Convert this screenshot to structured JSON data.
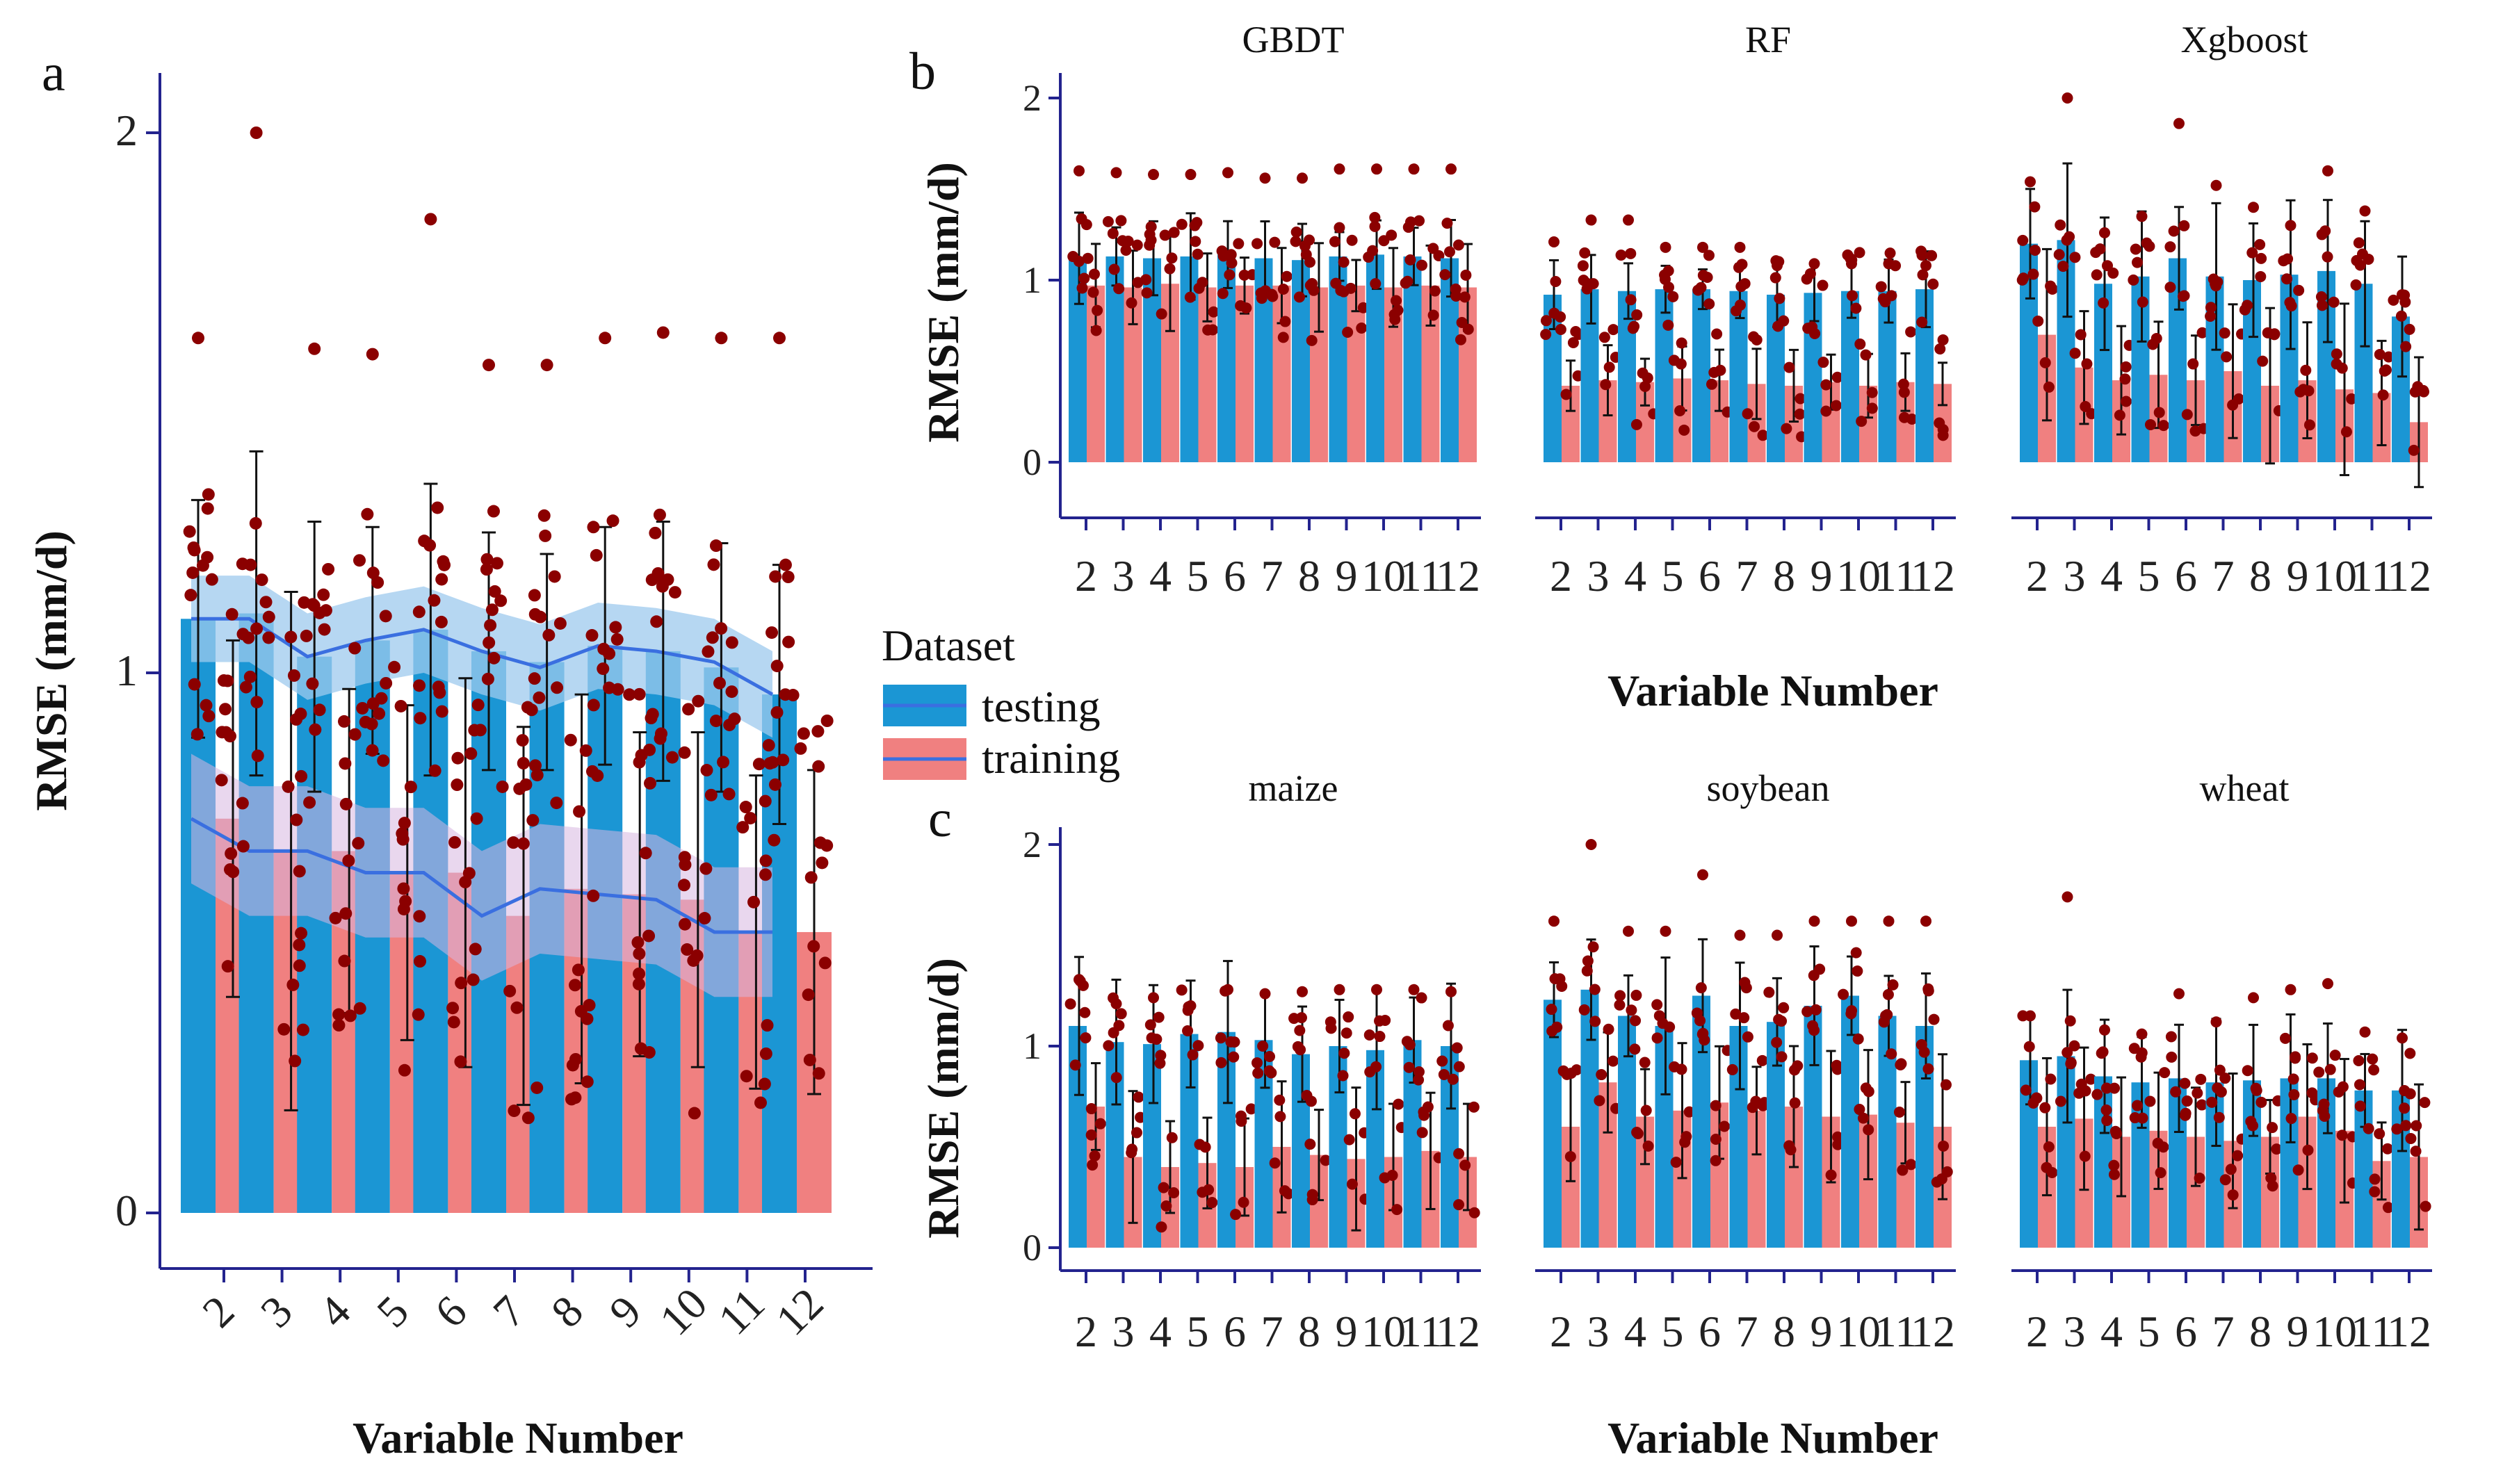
{
  "legend": {
    "title": "Dataset",
    "items": [
      "testing",
      "training"
    ]
  },
  "colors": {
    "testing": "#1B96D4",
    "training": "#F08080",
    "point": "#8B0000",
    "smooth": "#3A6FE0",
    "axis": "#23238E"
  },
  "chart_data": [
    {
      "panel": "a",
      "type": "bar",
      "xlabel": "Variable Number",
      "ylabel": "RMSE (mm/d)",
      "ylim": [
        -0.1,
        2.1
      ],
      "yticks": [
        "0",
        "1",
        "2"
      ],
      "categories": [
        "2",
        "3",
        "4",
        "5",
        "6",
        "7",
        "8",
        "9",
        "10",
        "11",
        "12"
      ],
      "series": [
        {
          "name": "testing",
          "values": [
            1.1,
            1.11,
            1.03,
            1.06,
            1.08,
            1.04,
            1.02,
            1.05,
            1.04,
            1.01,
            0.96
          ],
          "err": [
            0.22,
            0.3,
            0.25,
            0.21,
            0.27,
            0.22,
            0.2,
            0.22,
            0.24,
            0.23,
            0.24
          ],
          "points_hi": [
            1.62,
            2.0,
            1.6,
            1.59,
            1.84,
            1.57,
            1.57,
            1.62,
            1.63,
            1.62,
            1.62
          ]
        },
        {
          "name": "training",
          "values": [
            0.73,
            0.67,
            0.67,
            0.63,
            0.63,
            0.55,
            0.6,
            0.59,
            0.58,
            0.52,
            0.52
          ],
          "err": [
            0.33,
            0.48,
            0.3,
            0.31,
            0.36,
            0.35,
            0.36,
            0.3,
            0.31,
            0.29,
            0.3
          ]
        }
      ],
      "smooth": {
        "testing": [
          1.1,
          1.1,
          1.03,
          1.06,
          1.08,
          1.04,
          1.01,
          1.05,
          1.04,
          1.02,
          0.96
        ],
        "training": [
          0.73,
          0.67,
          0.67,
          0.63,
          0.63,
          0.55,
          0.6,
          0.59,
          0.58,
          0.52,
          0.52
        ]
      }
    },
    {
      "panel": "b",
      "type": "bar",
      "xlabel": "Variable Number",
      "ylabel": "RMSE (mm/d)",
      "ylim": [
        -0.3,
        2.1
      ],
      "yticks": [
        "0",
        "1",
        "2"
      ],
      "categories": [
        "2",
        "3",
        "4",
        "5",
        "6",
        "7",
        "8",
        "9",
        "10",
        "11",
        "12"
      ],
      "facets": [
        {
          "title": "GBDT",
          "testing": [
            1.12,
            1.13,
            1.12,
            1.13,
            1.14,
            1.12,
            1.11,
            1.13,
            1.14,
            1.13,
            1.12
          ],
          "training": [
            0.97,
            0.96,
            0.98,
            0.96,
            0.97,
            0.97,
            0.96,
            0.97,
            0.96,
            0.97,
            0.96
          ],
          "err": 0.22,
          "hi": [
            1.6,
            1.59,
            1.58,
            1.58,
            1.59,
            1.56,
            1.56,
            1.61,
            1.61,
            1.61,
            1.61
          ]
        },
        {
          "title": "RF",
          "testing": [
            0.92,
            0.95,
            0.94,
            0.95,
            0.95,
            0.94,
            0.92,
            0.93,
            0.94,
            0.94,
            0.95
          ],
          "training": [
            0.42,
            0.45,
            0.44,
            0.46,
            0.45,
            0.43,
            0.42,
            0.44,
            0.42,
            0.44,
            0.43
          ],
          "err": 0.18,
          "hi": [
            1.21,
            1.33,
            1.33,
            1.18,
            1.18,
            1.18,
            1.08,
            1.09,
            1.09,
            1.09,
            1.08
          ]
        },
        {
          "title": "Xgboost",
          "testing": [
            1.2,
            1.22,
            0.98,
            1.02,
            1.12,
            1.02,
            1.0,
            1.03,
            1.05,
            0.98,
            0.8
          ],
          "training": [
            0.7,
            0.52,
            0.45,
            0.48,
            0.45,
            0.5,
            0.42,
            0.45,
            0.4,
            0.38,
            0.22
          ],
          "err": 0.4,
          "hi": [
            1.54,
            2.0,
            1.26,
            1.35,
            1.86,
            1.52,
            1.4,
            1.3,
            1.6,
            1.38,
            0.92
          ]
        }
      ]
    },
    {
      "panel": "c",
      "type": "bar",
      "xlabel": "Variable Number",
      "ylabel": "RMSE (mm/d)",
      "ylim": [
        -0.1,
        2.1
      ],
      "yticks": [
        "0",
        "1",
        "2"
      ],
      "categories": [
        "2",
        "3",
        "4",
        "5",
        "6",
        "7",
        "8",
        "9",
        "10",
        "11",
        "12"
      ],
      "facets": [
        {
          "title": "maize",
          "testing": [
            1.1,
            1.02,
            1.01,
            1.06,
            1.07,
            1.03,
            0.96,
            1.0,
            0.98,
            1.03,
            1.0
          ],
          "training": [
            0.7,
            0.45,
            0.4,
            0.42,
            0.4,
            0.5,
            0.46,
            0.44,
            0.45,
            0.48,
            0.45
          ],
          "err": 0.3,
          "hi": [
            1.33,
            1.21,
            1.24,
            1.2,
            1.28,
            1.26,
            1.27,
            1.28,
            1.28,
            1.28,
            1.27
          ]
        },
        {
          "title": "soybean",
          "testing": [
            1.23,
            1.28,
            1.15,
            1.1,
            1.25,
            1.1,
            1.12,
            1.2,
            1.25,
            1.15,
            1.1
          ],
          "training": [
            0.6,
            0.82,
            0.65,
            0.68,
            0.72,
            0.68,
            0.7,
            0.65,
            0.66,
            0.62,
            0.6
          ],
          "err": 0.3,
          "hi": [
            1.62,
            2.0,
            1.57,
            1.57,
            1.85,
            1.55,
            1.55,
            1.62,
            1.62,
            1.62,
            1.62
          ]
        },
        {
          "title": "wheat",
          "testing": [
            0.93,
            0.95,
            0.85,
            0.82,
            0.84,
            0.82,
            0.83,
            0.84,
            0.84,
            0.78,
            0.78
          ],
          "training": [
            0.6,
            0.64,
            0.55,
            0.58,
            0.55,
            0.53,
            0.55,
            0.65,
            0.58,
            0.43,
            0.45
          ],
          "err": 0.3,
          "hi": [
            1.15,
            1.74,
            1.08,
            1.06,
            1.26,
            1.12,
            1.24,
            1.28,
            1.31,
            1.07,
            1.04
          ]
        }
      ]
    }
  ]
}
